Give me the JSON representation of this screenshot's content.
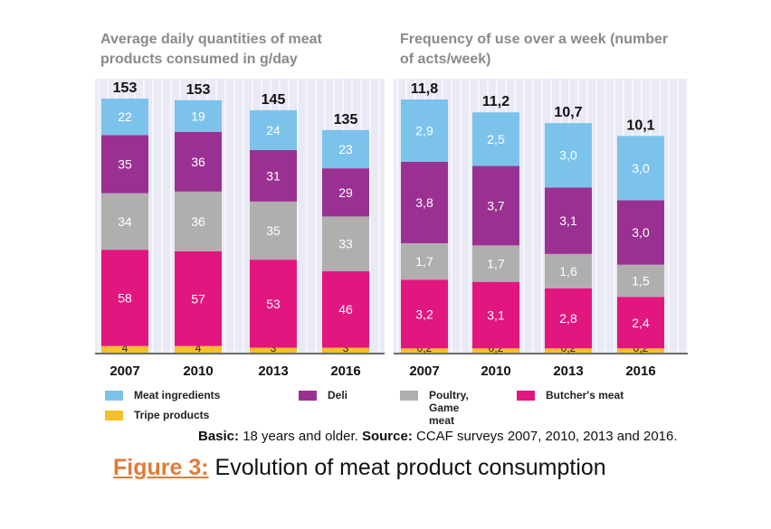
{
  "chart_data": [
    {
      "type": "bar",
      "stacked": true,
      "title": "Average daily quantities of meat products consumed in g/day",
      "categories": [
        "2007",
        "2010",
        "2013",
        "2016"
      ],
      "totals": [
        "153",
        "153",
        "145",
        "135"
      ],
      "series": [
        {
          "name": "Tripe products",
          "color": "#f5c02a",
          "values": [
            4,
            4,
            3,
            3
          ],
          "labels": [
            "4",
            "4",
            "3",
            "3"
          ]
        },
        {
          "name": "Butcher's meat",
          "color": "#e2167f",
          "values": [
            58,
            57,
            53,
            46
          ],
          "labels": [
            "58",
            "57",
            "53",
            "46"
          ]
        },
        {
          "name": "Poultry, Game meat",
          "color": "#b1aeae",
          "values": [
            34,
            36,
            35,
            33
          ],
          "labels": [
            "34",
            "36",
            "35",
            "33"
          ]
        },
        {
          "name": "Deli",
          "color": "#9a3192",
          "values": [
            35,
            36,
            31,
            29
          ],
          "labels": [
            "35",
            "36",
            "31",
            "29"
          ]
        },
        {
          "name": "Meat ingredients",
          "color": "#7cc3ec",
          "values": [
            22,
            19,
            24,
            23
          ],
          "labels": [
            "22",
            "19",
            "24",
            "23"
          ]
        }
      ],
      "ylim": [
        0,
        153
      ]
    },
    {
      "type": "bar",
      "stacked": true,
      "title": "Frequency of use over a week (number of acts/week)",
      "categories": [
        "2007",
        "2010",
        "2013",
        "2016"
      ],
      "totals": [
        "11,8",
        "11,2",
        "10,7",
        "10,1"
      ],
      "series": [
        {
          "name": "Tripe products",
          "color": "#f5c02a",
          "values": [
            0.2,
            0.2,
            0.2,
            0.2
          ],
          "labels": [
            "0,2",
            "0,2",
            "0,2",
            "0,2"
          ]
        },
        {
          "name": "Butcher's meat",
          "color": "#e2167f",
          "values": [
            3.2,
            3.1,
            2.8,
            2.4
          ],
          "labels": [
            "3,2",
            "3,1",
            "2,8",
            "2,4"
          ]
        },
        {
          "name": "Poultry, Game meat",
          "color": "#b1aeae",
          "values": [
            1.7,
            1.7,
            1.6,
            1.5
          ],
          "labels": [
            "1,7",
            "1,7",
            "1,6",
            "1,5"
          ]
        },
        {
          "name": "Deli",
          "color": "#9a3192",
          "values": [
            3.8,
            3.7,
            3.1,
            3.0
          ],
          "labels": [
            "3,8",
            "3,7",
            "3,1",
            "3,0"
          ]
        },
        {
          "name": "Meat ingredients",
          "color": "#7cc3ec",
          "values": [
            2.9,
            2.5,
            3.0,
            3.0
          ],
          "labels": [
            "2,9",
            "2,5",
            "3,0",
            "3,0"
          ]
        }
      ],
      "ylim": [
        0,
        11.8
      ]
    }
  ],
  "legend": [
    {
      "label": "Meat ingredients",
      "color": "#7cc3ec"
    },
    {
      "label": "Deli",
      "color": "#9a3192"
    },
    {
      "label": "Poultry,\nGame meat",
      "color": "#b1aeae"
    },
    {
      "label": "Butcher's meat",
      "color": "#e2167f"
    },
    {
      "label": "Tripe products",
      "color": "#f5c02a"
    }
  ],
  "note": {
    "basic_label": "Basic:",
    "basic_text": " 18 years and older. ",
    "source_label": "Source:",
    "source_text": " CCAF surveys 2007, 2010, 2013 and 2016."
  },
  "caption": {
    "figure_label": "Figure 3:",
    "text": " Evolution of meat product consumption"
  },
  "colors": {
    "panel_bg": "#e9eaf5",
    "title": "#8a8a8a",
    "caption_accent": "#e07b39"
  }
}
